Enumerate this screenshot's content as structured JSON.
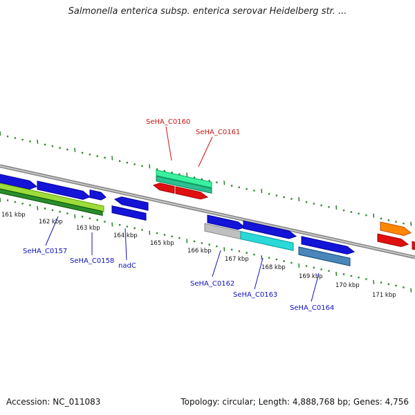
{
  "title": "Salmonella enterica subsp. enterica serovar Heidelberg str. ...",
  "footer": {
    "accession": "Accession: NC_011083",
    "summary": "Topology: circular; Length: 4,888,768 bp; Genes: 4,756"
  },
  "colors": {
    "backbone": "#8a8a8a",
    "tick": "#2e8b2e",
    "label_blue": "#1010c0",
    "label_red": "#cc1010"
  },
  "kbp_labels": [
    "161 kbp",
    "162 kbp",
    "163 kbp",
    "164 kbp",
    "165 kbp",
    "166 kbp",
    "167 kbp",
    "168 kbp",
    "169 kbp",
    "170 kbp",
    "171 kbp"
  ],
  "gene_labels": [
    {
      "text": "SeHA_C0157",
      "color": "#1010c0"
    },
    {
      "text": "SeHA_C0158",
      "color": "#1010c0"
    },
    {
      "text": "nadC",
      "color": "#1010c0"
    },
    {
      "text": "SeHA_C0160",
      "color": "#cc1010"
    },
    {
      "text": "SeHA_C0161",
      "color": "#cc1010"
    },
    {
      "text": "SeHA_C0162",
      "color": "#1010c0"
    },
    {
      "text": "SeHA_C0163",
      "color": "#1010c0"
    },
    {
      "text": "SeHA_C0164",
      "color": "#1010c0"
    }
  ]
}
